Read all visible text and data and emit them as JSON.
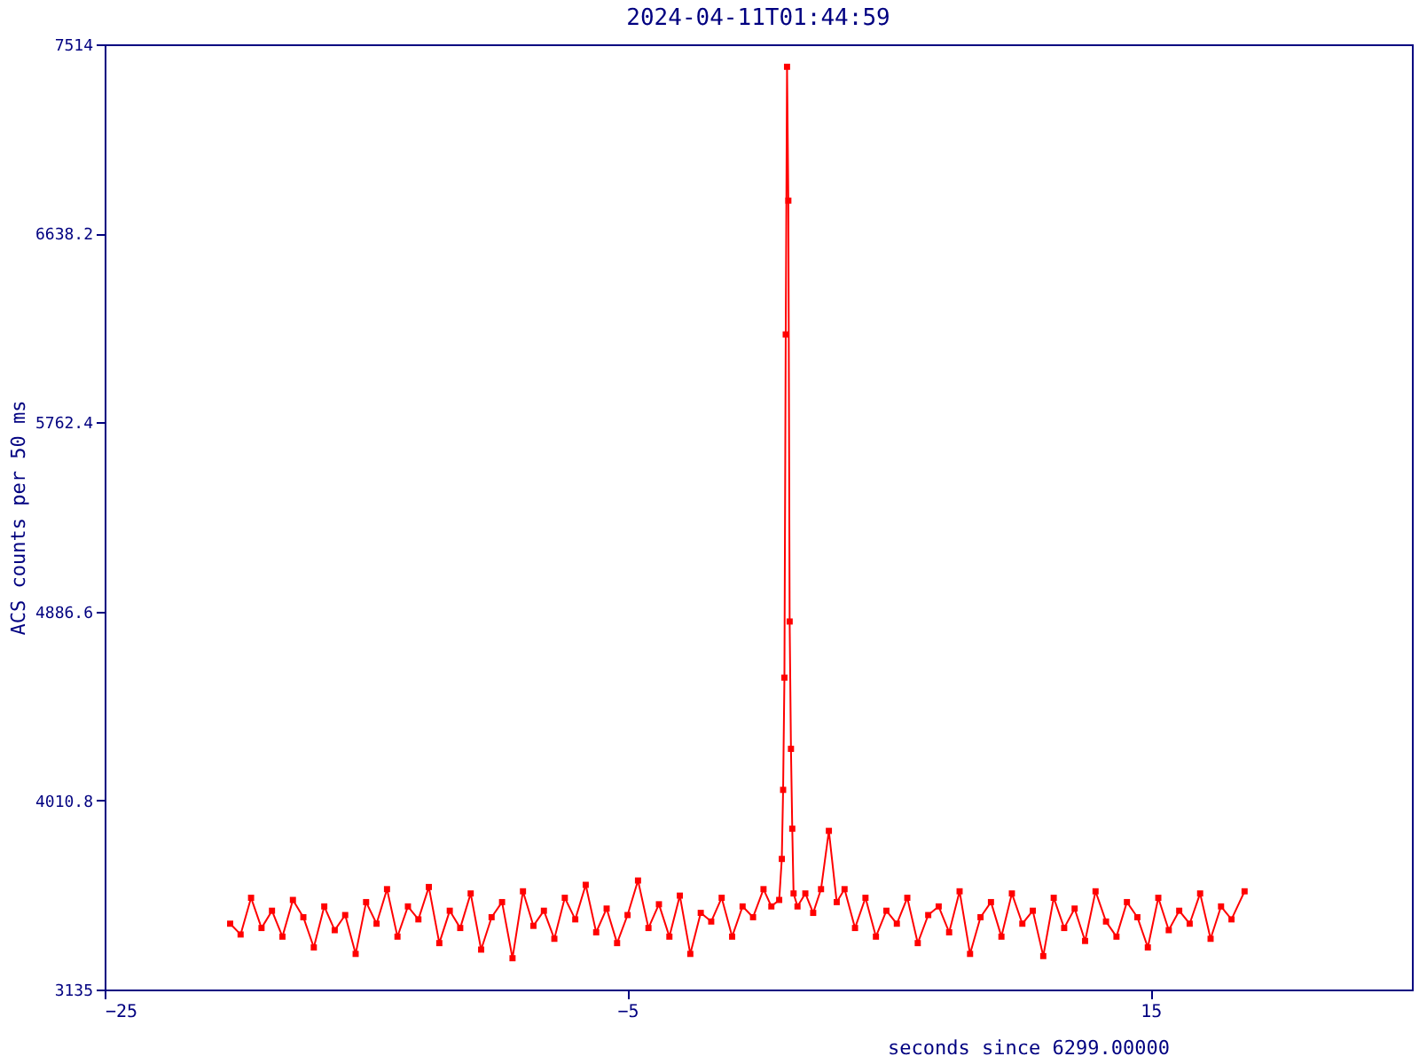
{
  "chart_data": {
    "type": "line",
    "title": "2024-04-11T01:44:59",
    "xlabel": "seconds since 6299.00000",
    "ylabel": "ACS counts per 50 ms",
    "x": [
      -20.2,
      -19.8,
      -19.4,
      -19.0,
      -18.6,
      -18.2,
      -17.8,
      -17.4,
      -17.0,
      -16.6,
      -16.2,
      -15.8,
      -15.4,
      -15.0,
      -14.6,
      -14.2,
      -13.8,
      -13.4,
      -13.0,
      -12.6,
      -12.2,
      -11.8,
      -11.4,
      -11.0,
      -10.6,
      -10.2,
      -9.8,
      -9.4,
      -9.0,
      -8.6,
      -8.2,
      -7.8,
      -7.4,
      -7.0,
      -6.6,
      -6.2,
      -5.8,
      -5.4,
      -5.0,
      -4.6,
      -4.2,
      -3.8,
      -3.4,
      -3.0,
      -2.6,
      -2.2,
      -1.8,
      -1.4,
      -1.0,
      -0.6,
      -0.2,
      0.2,
      0.5,
      0.8,
      0.9,
      0.95,
      1.0,
      1.05,
      1.1,
      1.15,
      1.2,
      1.25,
      1.3,
      1.35,
      1.5,
      1.8,
      2.1,
      2.4,
      2.7,
      3.0,
      3.3,
      3.7,
      4.1,
      4.5,
      4.9,
      5.3,
      5.7,
      6.1,
      6.5,
      6.9,
      7.3,
      7.7,
      8.1,
      8.5,
      8.9,
      9.3,
      9.7,
      10.1,
      10.5,
      10.9,
      11.3,
      11.7,
      12.1,
      12.5,
      12.9,
      13.3,
      13.7,
      14.1,
      14.5,
      14.9,
      15.3,
      15.7,
      16.1,
      16.5,
      16.9,
      17.3,
      17.7,
      18.1,
      18.6
    ],
    "series": [
      {
        "color": "#ff0000",
        "values": [
          3440,
          3390,
          3560,
          3420,
          3500,
          3380,
          3550,
          3470,
          3330,
          3520,
          3410,
          3480,
          3300,
          3540,
          3440,
          3600,
          3380,
          3520,
          3460,
          3610,
          3350,
          3500,
          3420,
          3580,
          3320,
          3470,
          3540,
          3280,
          3590,
          3430,
          3500,
          3370,
          3560,
          3460,
          3620,
          3400,
          3510,
          3350,
          3480,
          3640,
          3420,
          3530,
          3380,
          3570,
          3300,
          3490,
          3450,
          3560,
          3380,
          3520,
          3470,
          3600,
          3520,
          3550,
          3740,
          4060,
          4580,
          6170,
          7410,
          6790,
          4840,
          4250,
          3880,
          3580,
          3520,
          3580,
          3490,
          3600,
          3870,
          3540,
          3600,
          3420,
          3560,
          3380,
          3500,
          3440,
          3560,
          3350,
          3480,
          3520,
          3400,
          3590,
          3300,
          3470,
          3540,
          3380,
          3580,
          3440,
          3500,
          3290,
          3560,
          3420,
          3510,
          3360,
          3590,
          3450,
          3380,
          3540,
          3470,
          3330,
          3560,
          3410,
          3500,
          3440,
          3580,
          3370,
          3520,
          3460,
          3590
        ]
      }
    ],
    "xlim": [
      -25,
      25
    ],
    "xticks": [
      -25,
      -5,
      15
    ],
    "ylim": [
      3135,
      7514
    ],
    "yticks": [
      3135,
      4010.8,
      4886.6,
      5762.4,
      6638.2,
      7514
    ],
    "marker": "square",
    "line_style": "solid",
    "grid": false
  }
}
